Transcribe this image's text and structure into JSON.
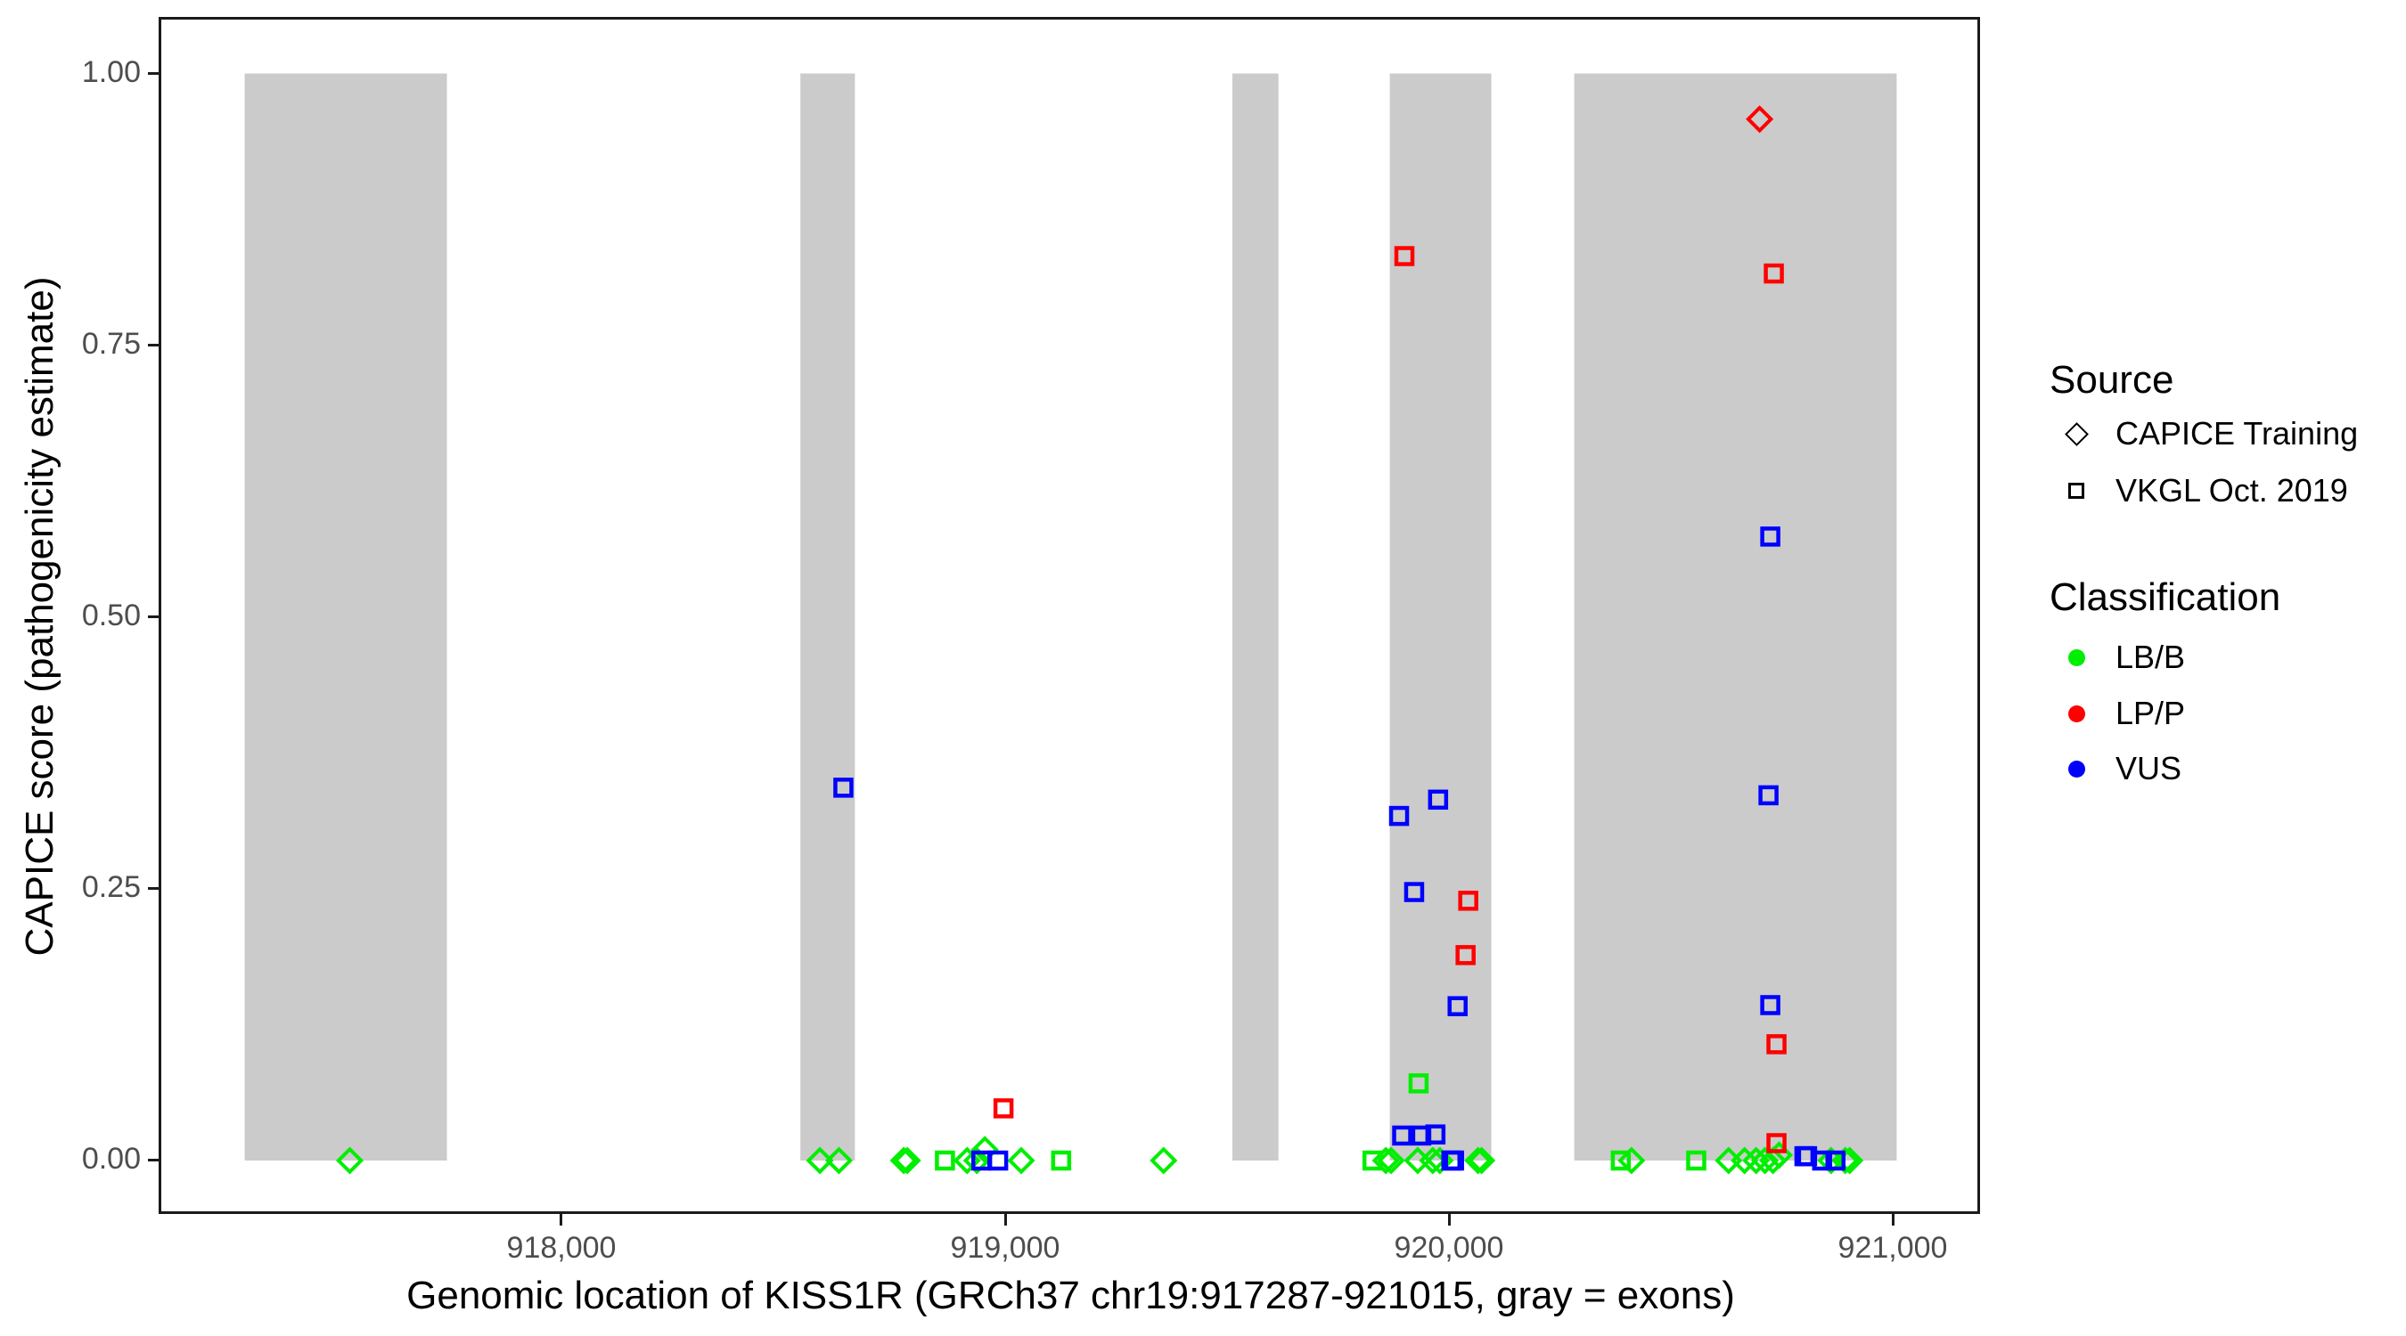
{
  "chart_data": {
    "type": "scatter",
    "title": "",
    "x_axis": {
      "label": "Genomic location of KISS1R (GRCh37 chr19:917287-921015, gray = exons)",
      "tick_labels": [
        "918,000",
        "919,000",
        "920,000",
        "921,000"
      ],
      "tick_values": [
        918000,
        919000,
        920000,
        921000
      ],
      "range": [
        917100,
        921200
      ],
      "grid": false
    },
    "y_axis": {
      "label": "CAPICE score (pathogenicity estimate)",
      "tick_labels": [
        "1.00",
        "0.75",
        "0.50",
        "0.25",
        "0.00"
      ],
      "tick_values": [
        1.0,
        0.75,
        0.5,
        0.25,
        0.0
      ],
      "range": [
        -0.05,
        1.05
      ],
      "grid": false
    },
    "gene_region": {
      "name": "KISS1R",
      "assembly": "GRCh37",
      "chrom": "chr19",
      "start": 917287,
      "end": 921015
    },
    "exon_color": "#CBCBCB",
    "exons": [
      [
        917287,
        917743
      ],
      [
        918540,
        918663
      ],
      [
        919514,
        919618
      ],
      [
        919869,
        920098
      ],
      [
        920285,
        921012
      ]
    ],
    "sources": [
      {
        "label": "CAPICE Training",
        "shape": "diamond"
      },
      {
        "label": "VKGL Oct. 2019",
        "shape": "square"
      }
    ],
    "classifications": [
      {
        "label": "LB/B",
        "color": "#00EE00"
      },
      {
        "label": "LP/P",
        "color": "#FF0000"
      },
      {
        "label": "VUS",
        "color": "#0000FF"
      }
    ],
    "points_schema": [
      "shape(d=CAPICE Training diamond, s=VKGL Oct. 2019 square)",
      "classification",
      "genomic_position",
      "capice_score"
    ],
    "points": [
      [
        "d",
        "LB/B",
        917524,
        0
      ],
      [
        "d",
        "LB/B",
        918584,
        0
      ],
      [
        "d",
        "LB/B",
        918627,
        0
      ],
      [
        "d",
        "LB/B",
        918773,
        0
      ],
      [
        "d",
        "LB/B",
        918781,
        0
      ],
      [
        "d",
        "LB/B",
        918916,
        0
      ],
      [
        "d",
        "LB/B",
        918938,
        0
      ],
      [
        "d",
        "LB/B",
        918956,
        0.01
      ],
      [
        "d",
        "LB/B",
        919038,
        0
      ],
      [
        "d",
        "LB/B",
        919359,
        0
      ],
      [
        "d",
        "LB/B",
        919860,
        0
      ],
      [
        "d",
        "LB/B",
        919872,
        0
      ],
      [
        "d",
        "LB/B",
        919932,
        0
      ],
      [
        "d",
        "LB/B",
        919966,
        0
      ],
      [
        "d",
        "LB/B",
        919982,
        0
      ],
      [
        "d",
        "LB/B",
        920068,
        0
      ],
      [
        "d",
        "LB/B",
        920076,
        0
      ],
      [
        "d",
        "LB/B",
        920414,
        0
      ],
      [
        "d",
        "LB/B",
        920633,
        0
      ],
      [
        "d",
        "LB/B",
        920669,
        0
      ],
      [
        "d",
        "LB/B",
        920695,
        0
      ],
      [
        "d",
        "LB/B",
        920715,
        0
      ],
      [
        "d",
        "LB/B",
        920733,
        0
      ],
      [
        "d",
        "LB/B",
        920747,
        0.005
      ],
      [
        "d",
        "LB/B",
        920864,
        0
      ],
      [
        "d",
        "LB/B",
        920896,
        0
      ],
      [
        "d",
        "LB/B",
        920906,
        0
      ],
      [
        "d",
        "LP/P",
        920703,
        0.958
      ],
      [
        "s",
        "VUS",
        918637,
        0.343
      ],
      [
        "s",
        "LB/B",
        918866,
        0
      ],
      [
        "s",
        "VUS",
        918948,
        0
      ],
      [
        "s",
        "VUS",
        918986,
        0
      ],
      [
        "s",
        "LP/P",
        918998,
        0.048
      ],
      [
        "s",
        "LB/B",
        919128,
        0
      ],
      [
        "s",
        "LB/B",
        919830,
        0
      ],
      [
        "s",
        "VUS",
        919890,
        0.317
      ],
      [
        "s",
        "VUS",
        919897,
        0.023
      ],
      [
        "s",
        "LP/P",
        919902,
        0.832
      ],
      [
        "s",
        "VUS",
        919924,
        0.247
      ],
      [
        "s",
        "LB/B",
        919934,
        0.071
      ],
      [
        "s",
        "VUS",
        919940,
        0.023
      ],
      [
        "s",
        "VUS",
        919972,
        0.024
      ],
      [
        "s",
        "VUS",
        919978,
        0.332
      ],
      [
        "s",
        "VUS",
        920008,
        0
      ],
      [
        "s",
        "VUS",
        920014,
        0
      ],
      [
        "s",
        "VUS",
        920022,
        0.142
      ],
      [
        "s",
        "LP/P",
        920040,
        0.189
      ],
      [
        "s",
        "LP/P",
        920046,
        0.239
      ],
      [
        "s",
        "LB/B",
        920390,
        0
      ],
      [
        "s",
        "LB/B",
        920560,
        0
      ],
      [
        "s",
        "VUS",
        920723,
        0.336
      ],
      [
        "s",
        "VUS",
        920727,
        0.574
      ],
      [
        "s",
        "VUS",
        920727,
        0.143
      ],
      [
        "s",
        "LP/P",
        920735,
        0.816
      ],
      [
        "s",
        "LP/P",
        920741,
        0.107
      ],
      [
        "s",
        "LP/P",
        920741,
        0.016
      ],
      [
        "s",
        "VUS",
        920804,
        0.004
      ],
      [
        "s",
        "VUS",
        920810,
        0.004
      ],
      [
        "s",
        "VUS",
        920844,
        0
      ],
      [
        "s",
        "VUS",
        920874,
        0
      ]
    ],
    "legend_position": "right"
  },
  "legend": {
    "source_title": "Source",
    "classification_title": "Classification"
  }
}
